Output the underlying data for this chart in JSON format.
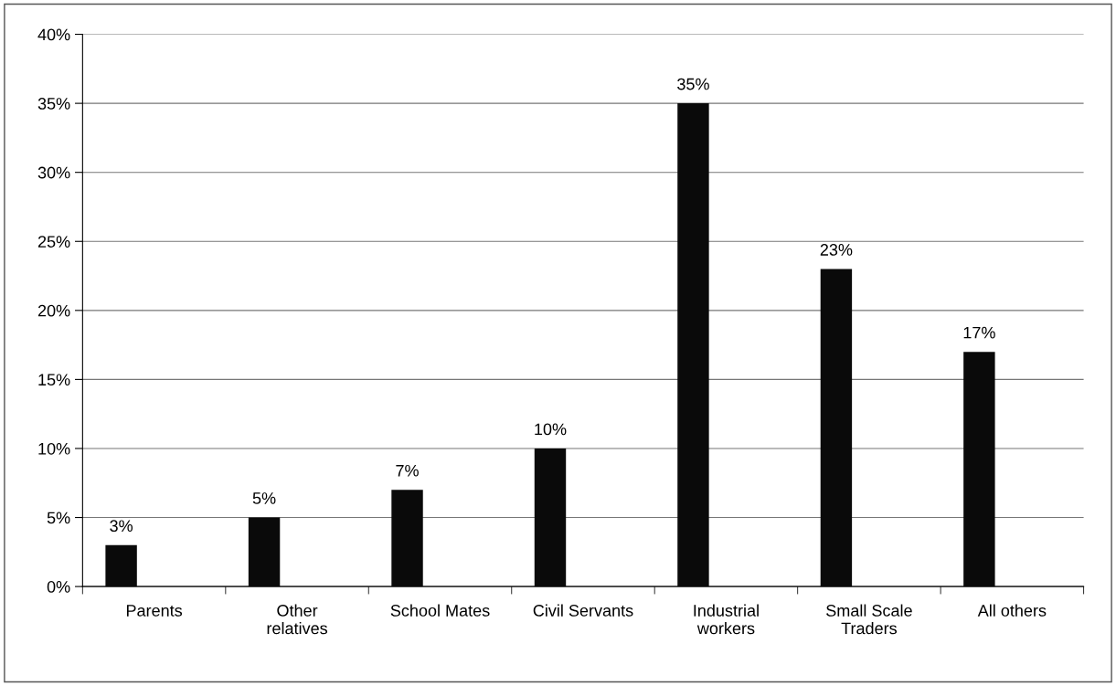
{
  "chart_data": {
    "type": "bar",
    "categories": [
      "Parents",
      "Other\nrelatives",
      "School Mates",
      "Civil Servants",
      "Industrial\nworkers",
      "Small Scale\nTraders",
      "All others"
    ],
    "values": [
      3,
      5,
      7,
      10,
      35,
      23,
      17
    ],
    "value_labels": [
      "3%",
      "5%",
      "7%",
      "10%",
      "35%",
      "23%",
      "17%"
    ],
    "color": "#0a0a0a",
    "ylim": [
      0,
      40
    ],
    "yticks": [
      {
        "value": 0,
        "label": "0%"
      },
      {
        "value": 5,
        "label": "5%"
      },
      {
        "value": 10,
        "label": "10%"
      },
      {
        "value": 15,
        "label": "15%"
      },
      {
        "value": 20,
        "label": "20%"
      },
      {
        "value": 25,
        "label": "25%"
      },
      {
        "value": 30,
        "label": "30%"
      },
      {
        "value": 35,
        "label": "35%"
      },
      {
        "value": 40,
        "label": "40%"
      }
    ],
    "grid": "y"
  }
}
